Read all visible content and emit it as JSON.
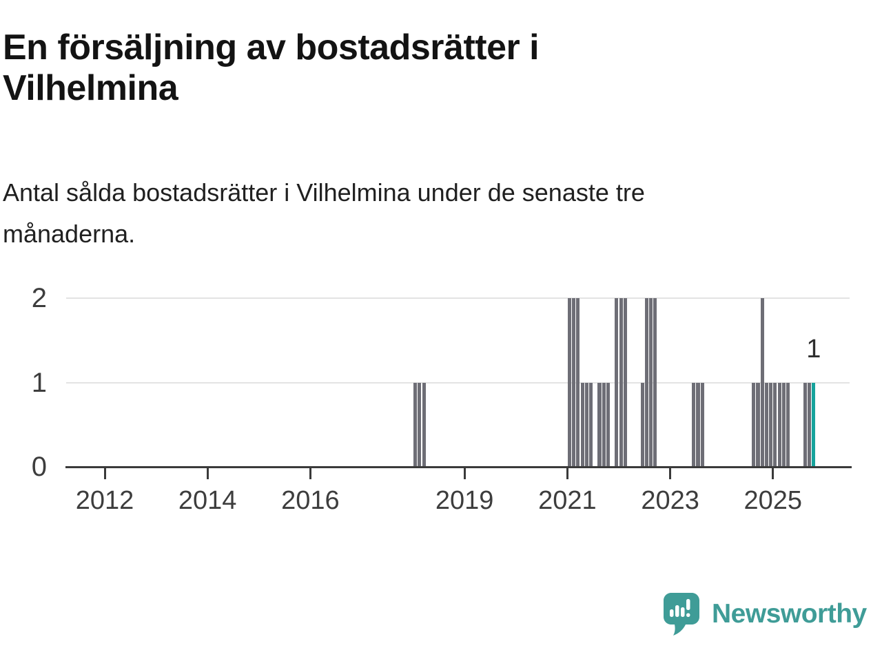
{
  "header": {
    "title": "En försäljning av bostadsrätter i Vilhelmina",
    "subtitle": "Antal sålda bostadsrätter i Vilhelmina under de senaste tre månaderna."
  },
  "chart_data": {
    "type": "bar",
    "title": "En försäljning av bostadsrätter i Vilhelmina",
    "subtitle": "Antal sålda bostadsrätter i Vilhelmina under de senaste tre månaderna.",
    "xlabel": "",
    "ylabel": "",
    "ylim": [
      0,
      2
    ],
    "y_ticks": [
      0,
      1,
      2
    ],
    "x_ticks": [
      2012,
      2014,
      2016,
      2019,
      2021,
      2023,
      2025
    ],
    "grid": "horizontal",
    "legend": "none",
    "bars": [
      {
        "month": "2018-01",
        "value": 1
      },
      {
        "month": "2018-02",
        "value": 1
      },
      {
        "month": "2018-03",
        "value": 1
      },
      {
        "month": "2021-01",
        "value": 2
      },
      {
        "month": "2021-02",
        "value": 2
      },
      {
        "month": "2021-03",
        "value": 2
      },
      {
        "month": "2021-04",
        "value": 1
      },
      {
        "month": "2021-05",
        "value": 1
      },
      {
        "month": "2021-06",
        "value": 1
      },
      {
        "month": "2021-08",
        "value": 1
      },
      {
        "month": "2021-09",
        "value": 1
      },
      {
        "month": "2021-10",
        "value": 1
      },
      {
        "month": "2021-12",
        "value": 2
      },
      {
        "month": "2022-01",
        "value": 2
      },
      {
        "month": "2022-02",
        "value": 2
      },
      {
        "month": "2022-06",
        "value": 1
      },
      {
        "month": "2022-07",
        "value": 2
      },
      {
        "month": "2022-08",
        "value": 2
      },
      {
        "month": "2022-09",
        "value": 2
      },
      {
        "month": "2023-06",
        "value": 1
      },
      {
        "month": "2023-07",
        "value": 1
      },
      {
        "month": "2023-08",
        "value": 1
      },
      {
        "month": "2024-08",
        "value": 1
      },
      {
        "month": "2024-09",
        "value": 1
      },
      {
        "month": "2024-10",
        "value": 2
      },
      {
        "month": "2024-11",
        "value": 1
      },
      {
        "month": "2024-12",
        "value": 1
      },
      {
        "month": "2025-01",
        "value": 1
      },
      {
        "month": "2025-02",
        "value": 1
      },
      {
        "month": "2025-03",
        "value": 1
      },
      {
        "month": "2025-04",
        "value": 1
      },
      {
        "month": "2025-08",
        "value": 1
      },
      {
        "month": "2025-09",
        "value": 1
      },
      {
        "month": "2025-10",
        "value": 1,
        "highlight": true
      }
    ],
    "annotation": {
      "text": "1",
      "month": "2025-10"
    }
  },
  "colors": {
    "bar": "#6E6E76",
    "highlight": "#16A39C",
    "axis": "#3A3A3A",
    "grid": "#E3E3E3",
    "brand": "#3F9C97"
  },
  "footer": {
    "brand": "Newsworthy"
  }
}
